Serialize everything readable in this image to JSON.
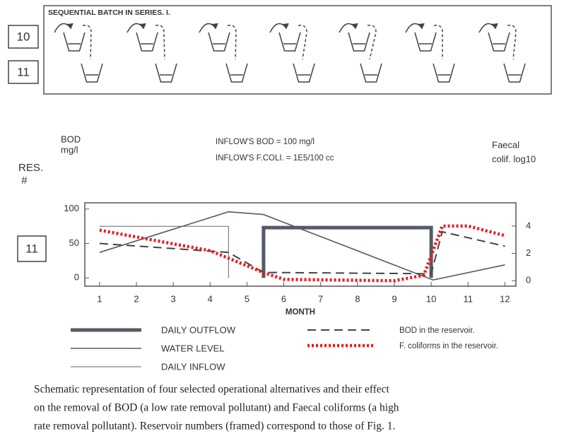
{
  "schematic": {
    "title": "SEQUENTIAL BATCH IN SERIES. I.",
    "rows": [
      "10",
      "11"
    ]
  },
  "chart_data": {
    "type": "line",
    "reservoir_label": [
      "RES.",
      "#"
    ],
    "reservoir": "11",
    "ylabel": [
      "BOD",
      "mg/l"
    ],
    "y2label": [
      "Faecal",
      "colif. log10"
    ],
    "notes": [
      "INFLOW'S BOD    =  100 mg/l",
      "INFLOW'S F.COLI.  =  1E5/100 cc"
    ],
    "xlabel": "MONTH",
    "xlim": [
      0.6,
      12.3
    ],
    "xticks": [
      1,
      2,
      3,
      4,
      5,
      6,
      7,
      8,
      9,
      10,
      11,
      12
    ],
    "ylim": [
      -12,
      109
    ],
    "yticks": [
      0,
      50,
      100
    ],
    "y2lim": [
      -0.4,
      5.7
    ],
    "y2ticks": [
      0,
      2,
      4
    ],
    "series": [
      {
        "name": "DAILY OUTFLOW",
        "color": "#555a66",
        "width": 5,
        "dash": "none",
        "axis": "y",
        "x": [
          5.45,
          5.45,
          10,
          10
        ],
        "values": [
          0,
          73,
          73,
          0
        ]
      },
      {
        "name": "WATER LEVEL",
        "color": "#555a66",
        "width": 1.6,
        "dash": "none",
        "axis": "y",
        "x": [
          1,
          4.5,
          5.45,
          10.05,
          12
        ],
        "values": [
          37,
          96,
          92,
          -3,
          19
        ]
      },
      {
        "name": "DAILY INFLOW",
        "color": "#666",
        "width": 1,
        "dash": "none",
        "axis": "y",
        "x": [
          1,
          4.5,
          4.5
        ],
        "values": [
          75,
          75,
          0
        ]
      },
      {
        "name": "BOD in the reservoir.",
        "color": "#444",
        "width": 2,
        "dash": "12 7",
        "axis": "y",
        "x": [
          1,
          4.5,
          5.45,
          10,
          10.3,
          12
        ],
        "values": [
          50,
          37,
          8,
          6,
          67,
          46
        ]
      },
      {
        "name": "F. coliforms in the reservoir.",
        "color": "#e02020",
        "width": 4.5,
        "dash": "3 3",
        "axis": "y2",
        "x": [
          1,
          4,
          5.45,
          6,
          9,
          9.8,
          10.3,
          11,
          12
        ],
        "values": [
          3.7,
          2.2,
          0.6,
          0.1,
          0,
          0.4,
          4.0,
          4.0,
          3.3
        ]
      }
    ]
  },
  "caption": [
    "Schematic representation  of four selected operational alternatives  and their effect",
    "on the removal of BOD (a low rate removal pollutant) and Faecal coliforms (a high",
    "rate removal pollutant).  Reservoir numbers  (framed) correspond to those of Fig. 1."
  ]
}
